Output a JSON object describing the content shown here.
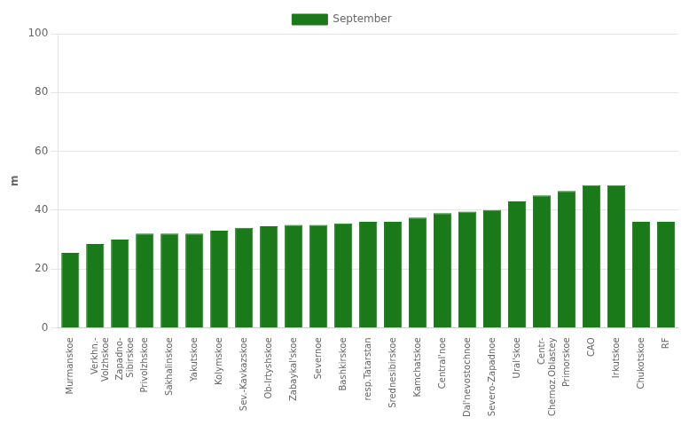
{
  "chart_data": {
    "type": "bar",
    "categories": [
      "Murmanskoe",
      "Verkhn.-\nVolzhskoe",
      "Zapadno-\nSibirskoe",
      "Privolzhskoe",
      "Sakhalinskoe",
      "Yakutskoe",
      "Kolymskoe",
      "Sev.-Kavkazskoe",
      "Ob-Irtyshskoe",
      "Zabaykal'skoe",
      "Severnoe",
      "Bashkirskoe",
      "resp.Tatarstan",
      "Srednesibirskoe",
      "Kamchatskoe",
      "Central'noe",
      "Dal'nevostochnoe",
      "Severo-Zapadnoe",
      "Ural'skoe",
      "Centr-\nChernoz.Oblastey",
      "Primorskoe",
      "CAO",
      "Irkutskoe",
      "Chukotskoe",
      "RF"
    ],
    "series": [
      {
        "name": "September",
        "color": "#1a7a1a",
        "values": [
          25.5,
          28.5,
          30.0,
          32.0,
          32.0,
          32.0,
          33.0,
          34.0,
          34.5,
          35.0,
          35.0,
          35.5,
          36.0,
          36.0,
          37.5,
          39.0,
          39.5,
          40.0,
          43.0,
          45.0,
          46.5,
          48.5,
          48.5,
          36.0,
          36.0
        ]
      }
    ],
    "ylabel": "m",
    "ylim": [
      0,
      100
    ],
    "yticks": [
      0,
      20,
      40,
      60,
      80,
      100
    ],
    "grid": true,
    "legend": "top"
  }
}
